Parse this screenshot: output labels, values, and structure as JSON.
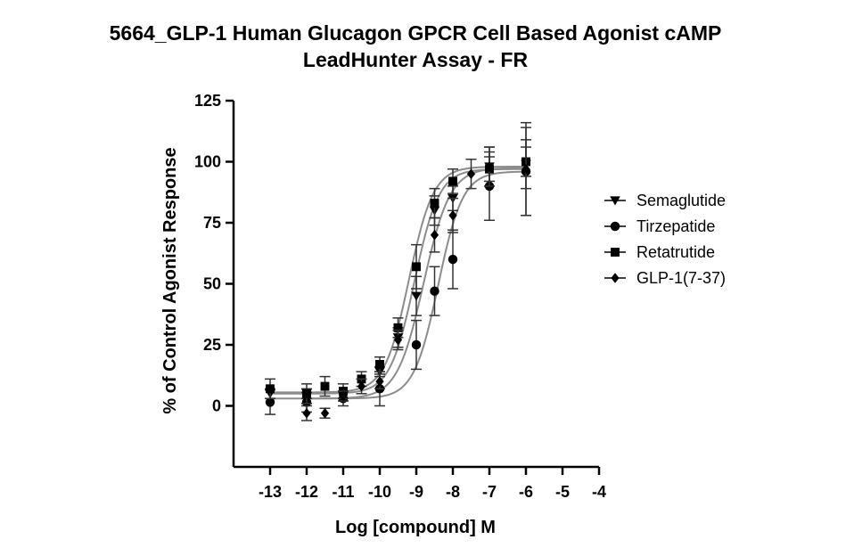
{
  "chart_data": {
    "type": "scatter",
    "title_lines": [
      "5664_GLP-1 Human Glucagon GPCR Cell Based Agonist cAMP",
      "LeadHunter Assay - FR"
    ],
    "xlabel": "Log [compound] M",
    "ylabel": "% of Control Agonist Response",
    "xlim": [
      -14,
      -4
    ],
    "ylim": [
      -25,
      125
    ],
    "x_ticks": [
      -13,
      -12,
      -11,
      -10,
      -9,
      -8,
      -7,
      -6,
      -5,
      -4
    ],
    "x_tick_labels": [
      "-13",
      "-12",
      "-11",
      "-10",
      "-9",
      "-8",
      "-7",
      "-6",
      "-5",
      "-4"
    ],
    "y_ticks": [
      0,
      25,
      50,
      75,
      100,
      125
    ],
    "y_tick_labels": [
      "0",
      "25",
      "50",
      "75",
      "100",
      "125"
    ],
    "grid": false,
    "legend_position": "right",
    "curve_color": "#8c8c8c",
    "marker_color": "#000000",
    "series": [
      {
        "name": "Semaglutide",
        "marker": "triangle-down",
        "x": [
          -13,
          -12,
          -11,
          -10,
          -9.5,
          -9,
          -8.5,
          -8,
          -7,
          -6
        ],
        "y": [
          5,
          5,
          4,
          14,
          28,
          45,
          80,
          85,
          98,
          99
        ],
        "err": [
          2,
          2,
          2,
          2,
          4,
          8,
          6,
          5,
          8,
          10
        ],
        "fit": {
          "bottom": 5,
          "top": 97,
          "logec50": -9.05,
          "hill": 1.3
        }
      },
      {
        "name": "Tirzepatide",
        "marker": "circle",
        "x": [
          -13,
          -12,
          -11,
          -10,
          -9,
          -8.5,
          -8,
          -7,
          -6
        ],
        "y": [
          1.5,
          1.5,
          3,
          7,
          25,
          47,
          60,
          90,
          96
        ],
        "err": [
          5,
          4,
          3,
          7,
          10,
          10,
          12,
          14,
          18
        ],
        "fit": {
          "bottom": 3,
          "top": 96,
          "logec50": -8.4,
          "hill": 1.3
        }
      },
      {
        "name": "Retatrutide",
        "marker": "square",
        "x": [
          -13,
          -12,
          -11.5,
          -11,
          -10.5,
          -10,
          -9.5,
          -9,
          -8.5,
          -8,
          -7,
          -6
        ],
        "y": [
          7,
          5,
          8,
          6,
          11,
          17,
          32,
          57,
          83,
          92,
          97,
          100
        ],
        "err": [
          4,
          4,
          4,
          3,
          3,
          3,
          4,
          9,
          6,
          5,
          5,
          6
        ],
        "fit": {
          "bottom": 5.5,
          "top": 98,
          "logec50": -9.2,
          "hill": 1.3
        }
      },
      {
        "name": "GLP-1(7-37)",
        "marker": "diamond",
        "x": [
          -12,
          -11.5,
          -11,
          -10.5,
          -10,
          -9.5,
          -8.5,
          -8,
          -7.5,
          -7,
          -6
        ],
        "y": [
          -3,
          -3,
          4,
          8,
          10,
          27,
          70,
          78,
          95,
          98,
          97
        ],
        "err": [
          3,
          2,
          2,
          3,
          3,
          4,
          7,
          7,
          6,
          8,
          19
        ],
        "fit": {
          "bottom": 3,
          "top": 97.5,
          "logec50": -8.8,
          "hill": 1.2
        }
      }
    ]
  }
}
